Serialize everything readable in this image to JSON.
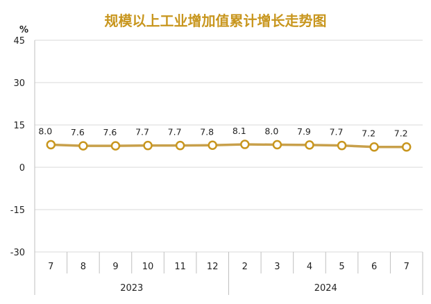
{
  "chart_data": {
    "type": "line",
    "title": "规模以上工业增加值累计增长走势图",
    "ylabel": "%",
    "ylim": [
      -30,
      45
    ],
    "yticks": [
      45,
      30,
      15,
      0,
      -15,
      -30
    ],
    "categories": [
      "7",
      "8",
      "9",
      "10",
      "11",
      "12",
      "2",
      "3",
      "4",
      "5",
      "6",
      "7"
    ],
    "year_groups": [
      {
        "label": "2023",
        "count": 6
      },
      {
        "label": "2024",
        "count": 6
      }
    ],
    "series": [
      {
        "values": [
          8.0,
          7.6,
          7.6,
          7.7,
          7.7,
          7.8,
          8.1,
          8.0,
          7.9,
          7.7,
          7.2,
          7.2
        ],
        "labels": [
          "8.0",
          "7.6",
          "7.6",
          "7.7",
          "7.7",
          "7.8",
          "8.1",
          "8.0",
          "7.9",
          "7.7",
          "7.2",
          "7.2"
        ]
      }
    ],
    "grid": "horizontal",
    "legend": "none",
    "colors": {
      "line": "#C8A04B",
      "marker_fill": "#ffffff",
      "marker_stroke": "#C8961E",
      "title": "#C8961E",
      "grid": "#D9D9D9"
    }
  }
}
